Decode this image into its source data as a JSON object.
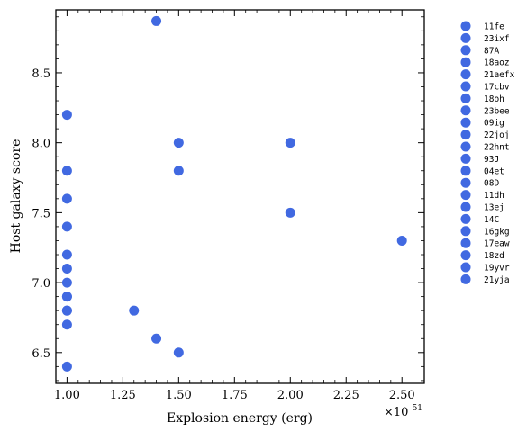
{
  "chart_data": {
    "type": "scatter",
    "xlabel": "Explosion energy (erg)",
    "ylabel": "Host galaxy score",
    "x_multiplier_label": "×10",
    "x_multiplier_exponent": "51",
    "xlim": [
      0.95,
      2.6
    ],
    "ylim": [
      6.28,
      8.95
    ],
    "xticks": [
      1.0,
      1.25,
      1.5,
      1.75,
      2.0,
      2.25,
      2.5
    ],
    "xtick_labels": [
      "1.00",
      "1.25",
      "1.50",
      "1.75",
      "2.00",
      "2.25",
      "2.50"
    ],
    "yticks": [
      6.5,
      7.0,
      7.5,
      8.0,
      8.5
    ],
    "ytick_labels": [
      "6.5",
      "7.0",
      "7.5",
      "8.0",
      "8.5"
    ],
    "marker_color": "#4169e1",
    "grid": false,
    "legend_position": "outside-right",
    "series": [
      {
        "name": "11fe",
        "x": 1.4,
        "y": 8.87
      },
      {
        "name": "23ixf",
        "x": 1.0,
        "y": 8.2
      },
      {
        "name": "87A",
        "x": 1.5,
        "y": 8.0
      },
      {
        "name": "18aoz",
        "x": 2.0,
        "y": 8.0
      },
      {
        "name": "21aefx",
        "x": 1.0,
        "y": 7.8
      },
      {
        "name": "17cbv",
        "x": 1.5,
        "y": 7.8
      },
      {
        "name": "18oh",
        "x": 1.0,
        "y": 7.6
      },
      {
        "name": "23bee",
        "x": 2.0,
        "y": 7.5
      },
      {
        "name": "09ig",
        "x": 1.0,
        "y": 7.4
      },
      {
        "name": "22joj",
        "x": 2.5,
        "y": 7.3
      },
      {
        "name": "22hnt",
        "x": 1.0,
        "y": 7.2
      },
      {
        "name": "93J",
        "x": 1.0,
        "y": 7.1
      },
      {
        "name": "04et",
        "x": 1.0,
        "y": 7.0
      },
      {
        "name": "08D",
        "x": 1.0,
        "y": 6.9
      },
      {
        "name": "11dh",
        "x": 1.3,
        "y": 6.8
      },
      {
        "name": "13ej",
        "x": 1.0,
        "y": 6.8
      },
      {
        "name": "14C",
        "x": 1.0,
        "y": 6.7
      },
      {
        "name": "16gkg",
        "x": 1.4,
        "y": 6.6
      },
      {
        "name": "17eaw",
        "x": 1.5,
        "y": 6.5
      },
      {
        "name": "18zd",
        "x": 1.0,
        "y": 6.4
      },
      {
        "name": "19yvr",
        "x": 1.0,
        "y": 6.9
      },
      {
        "name": "21yja",
        "x": 1.0,
        "y": 6.8
      }
    ]
  }
}
